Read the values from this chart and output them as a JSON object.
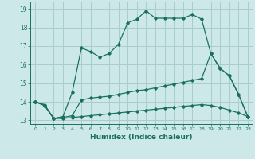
{
  "xlabel": "Humidex (Indice chaleur)",
  "bg_color": "#cce8e8",
  "grid_color": "#aacccc",
  "line_color": "#1a7060",
  "xlim": [
    -0.5,
    23.5
  ],
  "ylim": [
    12.8,
    19.4
  ],
  "xticks": [
    0,
    1,
    2,
    3,
    4,
    5,
    6,
    7,
    8,
    9,
    10,
    11,
    12,
    13,
    14,
    15,
    16,
    17,
    18,
    19,
    20,
    21,
    22,
    23
  ],
  "yticks": [
    13,
    14,
    15,
    16,
    17,
    18,
    19
  ],
  "line1_x": [
    0,
    1,
    2,
    3,
    4,
    5,
    6,
    7,
    8,
    9,
    10,
    11,
    12,
    13,
    14,
    15,
    16,
    17,
    18,
    19,
    20,
    21,
    22,
    23
  ],
  "line1_y": [
    14.0,
    13.8,
    13.1,
    13.2,
    14.5,
    16.9,
    16.7,
    16.4,
    16.6,
    17.1,
    18.25,
    18.45,
    18.9,
    18.5,
    18.5,
    18.5,
    18.5,
    18.7,
    18.45,
    16.6,
    15.8,
    15.4,
    14.4,
    13.2
  ],
  "line2_x": [
    0,
    1,
    2,
    3,
    4,
    5,
    6,
    7,
    8,
    9,
    10,
    11,
    12,
    13,
    14,
    15,
    16,
    17,
    18,
    19,
    20,
    21,
    22,
    23
  ],
  "line2_y": [
    14.0,
    13.85,
    13.1,
    13.15,
    13.25,
    14.1,
    14.2,
    14.25,
    14.3,
    14.4,
    14.5,
    14.6,
    14.65,
    14.75,
    14.85,
    14.95,
    15.05,
    15.15,
    15.25,
    16.6,
    15.8,
    15.4,
    14.4,
    13.2
  ],
  "line3_x": [
    0,
    1,
    2,
    3,
    4,
    5,
    6,
    7,
    8,
    9,
    10,
    11,
    12,
    13,
    14,
    15,
    16,
    17,
    18,
    19,
    20,
    21,
    22,
    23
  ],
  "line3_y": [
    14.0,
    13.8,
    13.1,
    13.1,
    13.15,
    13.2,
    13.25,
    13.3,
    13.35,
    13.4,
    13.45,
    13.5,
    13.55,
    13.6,
    13.65,
    13.7,
    13.75,
    13.8,
    13.85,
    13.8,
    13.7,
    13.55,
    13.4,
    13.2
  ]
}
